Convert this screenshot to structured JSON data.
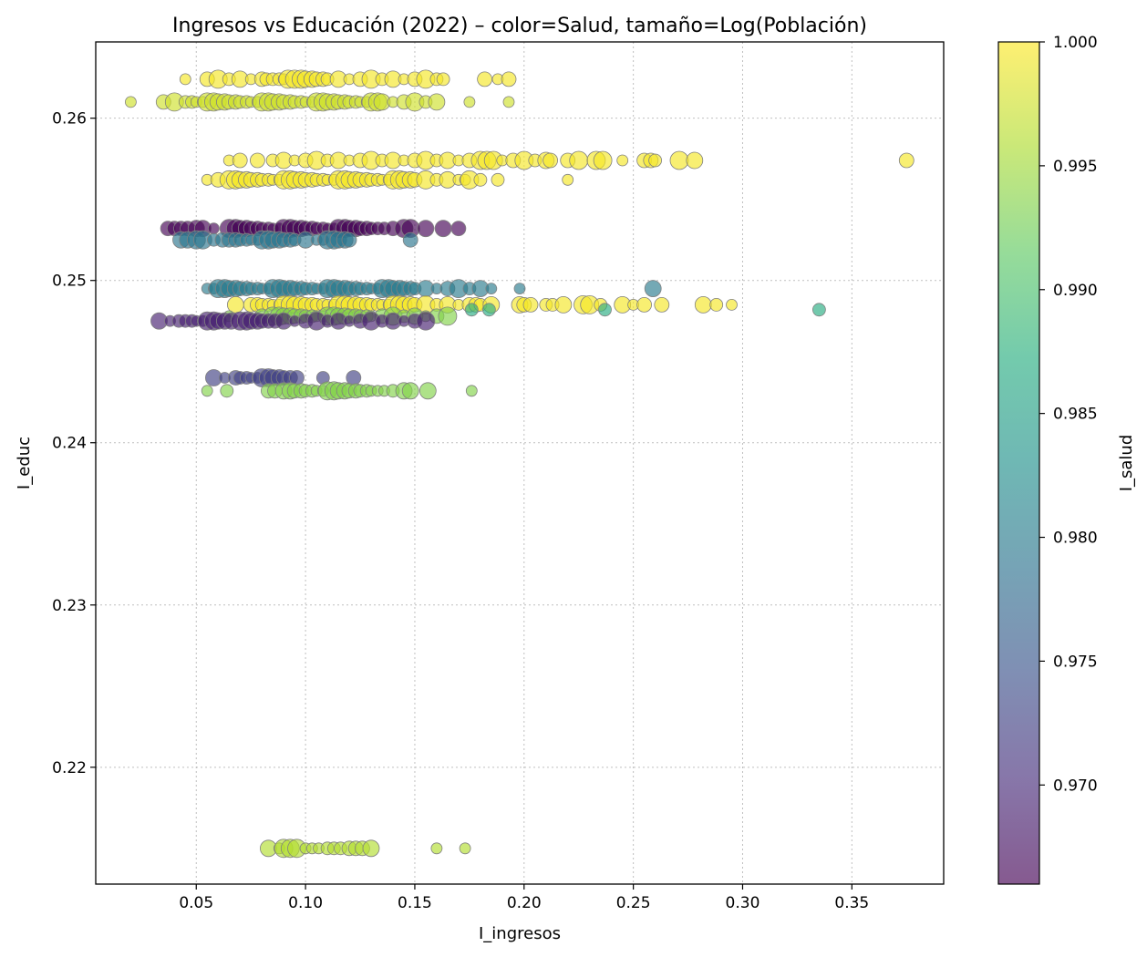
{
  "chart_data": {
    "type": "scatter",
    "title": "Ingresos vs Educación (2022) – color=Salud, tamaño=Log(Población)",
    "xlabel": "I_ingresos",
    "ylabel": "I_educ",
    "xlim": [
      0.004,
      0.392
    ],
    "ylim": [
      0.2128,
      0.2647
    ],
    "xticks": [
      0.05,
      0.1,
      0.15,
      0.2,
      0.25,
      0.3,
      0.35
    ],
    "xtick_labels": [
      "0.05",
      "0.10",
      "0.15",
      "0.20",
      "0.25",
      "0.30",
      "0.35"
    ],
    "yticks": [
      0.22,
      0.23,
      0.24,
      0.25,
      0.26
    ],
    "ytick_labels": [
      "0.22",
      "0.23",
      "0.24",
      "0.25",
      "0.26"
    ],
    "grid": true,
    "colorbar": {
      "label": "I_salud",
      "colormap": "viridis",
      "range": [
        0.966,
        1.0
      ],
      "ticks": [
        0.97,
        0.975,
        0.98,
        0.985,
        0.99,
        0.995,
        1.0
      ],
      "tick_labels": [
        "0.970",
        "0.975",
        "0.980",
        "0.985",
        "0.990",
        "0.995",
        "1.000"
      ]
    },
    "marker_alpha": 0.65,
    "marker_edge_color": "#808080",
    "bands": [
      {
        "y": 0.2624,
        "salud": 0.9995,
        "x": [
          0.045,
          0.055,
          0.06,
          0.065,
          0.07,
          0.075,
          0.08,
          0.082,
          0.085,
          0.088,
          0.09,
          0.092,
          0.095,
          0.098,
          0.1,
          0.103,
          0.105,
          0.108,
          0.11,
          0.115,
          0.12,
          0.125,
          0.13,
          0.135,
          0.14,
          0.145,
          0.15,
          0.155,
          0.16,
          0.163,
          0.182,
          0.188,
          0.193
        ]
      },
      {
        "y": 0.261,
        "salud": 0.9975,
        "x": [
          0.02,
          0.035,
          0.04,
          0.045,
          0.048,
          0.05,
          0.053,
          0.055,
          0.058,
          0.06,
          0.063,
          0.065,
          0.068,
          0.07,
          0.073,
          0.075,
          0.078,
          0.08,
          0.083,
          0.085,
          0.088,
          0.09,
          0.093,
          0.095,
          0.098,
          0.1,
          0.103,
          0.105,
          0.108,
          0.11,
          0.113,
          0.115,
          0.118,
          0.12,
          0.123,
          0.125,
          0.128,
          0.13,
          0.133,
          0.135,
          0.14,
          0.145,
          0.15,
          0.155,
          0.16,
          0.175,
          0.193
        ]
      },
      {
        "y": 0.2574,
        "salud": 0.9995,
        "x": [
          0.065,
          0.07,
          0.078,
          0.085,
          0.09,
          0.095,
          0.1,
          0.105,
          0.11,
          0.115,
          0.12,
          0.125,
          0.13,
          0.135,
          0.14,
          0.145,
          0.15,
          0.155,
          0.16,
          0.165,
          0.17,
          0.175,
          0.18,
          0.183,
          0.186,
          0.19,
          0.195,
          0.2,
          0.205,
          0.21,
          0.212,
          0.22,
          0.225,
          0.233,
          0.236,
          0.245,
          0.255,
          0.258,
          0.26,
          0.271,
          0.278,
          0.375
        ]
      },
      {
        "y": 0.2562,
        "salud": 0.9995,
        "x": [
          0.055,
          0.06,
          0.065,
          0.068,
          0.07,
          0.073,
          0.075,
          0.078,
          0.08,
          0.083,
          0.085,
          0.088,
          0.09,
          0.093,
          0.095,
          0.098,
          0.1,
          0.103,
          0.105,
          0.108,
          0.11,
          0.113,
          0.115,
          0.118,
          0.12,
          0.123,
          0.125,
          0.128,
          0.13,
          0.133,
          0.135,
          0.138,
          0.14,
          0.143,
          0.145,
          0.148,
          0.15,
          0.155,
          0.16,
          0.165,
          0.17,
          0.173,
          0.175,
          0.18,
          0.188,
          0.22
        ]
      },
      {
        "y": 0.2532,
        "salud": 0.966,
        "x": [
          0.037,
          0.04,
          0.043,
          0.046,
          0.05,
          0.053,
          0.058,
          0.065,
          0.068,
          0.07,
          0.073,
          0.075,
          0.078,
          0.08,
          0.083,
          0.085,
          0.088,
          0.09,
          0.093,
          0.095,
          0.098,
          0.1,
          0.103,
          0.105,
          0.108,
          0.11,
          0.113,
          0.115,
          0.118,
          0.12,
          0.123,
          0.125,
          0.128,
          0.13,
          0.133,
          0.136,
          0.14,
          0.145,
          0.148,
          0.155,
          0.163,
          0.17
        ]
      },
      {
        "y": 0.2525,
        "salud": 0.979,
        "x": [
          0.043,
          0.046,
          0.05,
          0.053,
          0.058,
          0.062,
          0.065,
          0.068,
          0.07,
          0.073,
          0.075,
          0.078,
          0.08,
          0.083,
          0.085,
          0.088,
          0.09,
          0.093,
          0.095,
          0.1,
          0.105,
          0.108,
          0.11,
          0.113,
          0.115,
          0.118,
          0.12,
          0.148
        ]
      },
      {
        "y": 0.2495,
        "salud": 0.98,
        "x": [
          0.055,
          0.058,
          0.06,
          0.063,
          0.065,
          0.068,
          0.07,
          0.073,
          0.075,
          0.078,
          0.08,
          0.083,
          0.085,
          0.088,
          0.09,
          0.093,
          0.095,
          0.098,
          0.1,
          0.103,
          0.105,
          0.108,
          0.11,
          0.113,
          0.115,
          0.118,
          0.12,
          0.123,
          0.125,
          0.128,
          0.13,
          0.133,
          0.135,
          0.138,
          0.14,
          0.143,
          0.145,
          0.148,
          0.15,
          0.155,
          0.16,
          0.165,
          0.17,
          0.175,
          0.18,
          0.185,
          0.198,
          0.259
        ]
      },
      {
        "y": 0.2485,
        "salud": 0.9995,
        "x": [
          0.068,
          0.075,
          0.078,
          0.08,
          0.083,
          0.085,
          0.088,
          0.09,
          0.093,
          0.095,
          0.098,
          0.1,
          0.103,
          0.105,
          0.108,
          0.11,
          0.113,
          0.115,
          0.118,
          0.12,
          0.123,
          0.125,
          0.128,
          0.13,
          0.133,
          0.135,
          0.138,
          0.14,
          0.143,
          0.145,
          0.148,
          0.15,
          0.155,
          0.16,
          0.165,
          0.17,
          0.175,
          0.178,
          0.18,
          0.185,
          0.198,
          0.2,
          0.203,
          0.21,
          0.213,
          0.218,
          0.227,
          0.23,
          0.235,
          0.245,
          0.25,
          0.255,
          0.263,
          0.282,
          0.288,
          0.295
        ]
      },
      {
        "y": 0.2482,
        "salud": 0.987,
        "x": [
          0.176,
          0.184,
          0.237,
          0.335
        ]
      },
      {
        "y": 0.2478,
        "salud": 0.9935,
        "x": [
          0.065,
          0.08,
          0.085,
          0.088,
          0.09,
          0.093,
          0.095,
          0.098,
          0.1,
          0.103,
          0.105,
          0.108,
          0.11,
          0.113,
          0.115,
          0.118,
          0.12,
          0.123,
          0.125,
          0.128,
          0.13,
          0.135,
          0.14,
          0.145,
          0.15,
          0.155,
          0.16,
          0.165
        ]
      },
      {
        "y": 0.2475,
        "salud": 0.969,
        "x": [
          0.033,
          0.038,
          0.042,
          0.045,
          0.048,
          0.05,
          0.053,
          0.055,
          0.058,
          0.06,
          0.063,
          0.066,
          0.07,
          0.073,
          0.075,
          0.078,
          0.08,
          0.083,
          0.086,
          0.09,
          0.095,
          0.1,
          0.105,
          0.11,
          0.115,
          0.12,
          0.125,
          0.13,
          0.135,
          0.14,
          0.145,
          0.15,
          0.155
        ]
      },
      {
        "y": 0.244,
        "salud": 0.9725,
        "x": [
          0.058,
          0.063,
          0.068,
          0.07,
          0.073,
          0.075,
          0.078,
          0.08,
          0.083,
          0.085,
          0.088,
          0.09,
          0.093,
          0.096,
          0.108,
          0.122
        ]
      },
      {
        "y": 0.2432,
        "salud": 0.9935,
        "x": [
          0.055,
          0.064,
          0.083,
          0.086,
          0.09,
          0.093,
          0.095,
          0.098,
          0.1,
          0.103,
          0.105,
          0.108,
          0.11,
          0.113,
          0.115,
          0.118,
          0.12,
          0.123,
          0.125,
          0.128,
          0.13,
          0.133,
          0.136,
          0.14,
          0.145,
          0.148,
          0.156,
          0.176
        ]
      },
      {
        "y": 0.215,
        "salud": 0.996,
        "x": [
          0.083,
          0.088,
          0.09,
          0.093,
          0.096,
          0.1,
          0.103,
          0.106,
          0.11,
          0.113,
          0.116,
          0.12,
          0.123,
          0.126,
          0.13,
          0.16,
          0.173
        ]
      }
    ]
  }
}
